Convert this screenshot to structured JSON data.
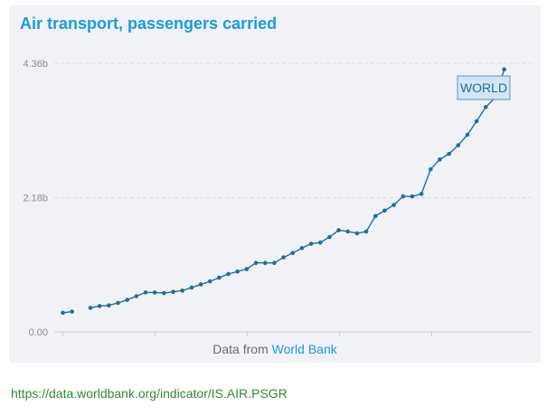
{
  "header": {
    "title": "Air transport, passengers carried"
  },
  "source": {
    "prefix": "Data from",
    "link_text": "World Bank"
  },
  "footer": {
    "url": "https://data.worldbank.org/indicator/IS.AIR.PSGR"
  },
  "colors": {
    "title": "#1b9be0",
    "series": "#1f6fa0",
    "grid": "#d6d9e0",
    "link": "#2e8b2e"
  },
  "chart_data": {
    "type": "line",
    "title": "Air transport, passengers carried",
    "xlabel": "",
    "ylabel": "",
    "y_ticks": [
      "0.00",
      "2.18b",
      "4.36b"
    ],
    "y_tick_values": [
      0,
      2.18,
      4.36
    ],
    "ylim": [
      0,
      4.36
    ],
    "grid": true,
    "series": [
      {
        "name": "WORLD",
        "segments": [
          {
            "x": [
              0,
              1
            ],
            "y": [
              0.31,
              0.33
            ]
          },
          {
            "x": [
              3,
              4,
              5,
              6,
              7,
              8,
              9,
              10,
              11,
              12,
              13,
              14,
              15,
              16,
              17,
              18,
              19,
              20,
              21,
              22,
              23,
              24,
              25,
              26,
              27,
              28,
              29,
              30,
              31,
              32,
              33,
              34,
              35,
              36,
              37,
              38,
              39,
              40,
              41,
              42,
              43,
              44,
              45,
              46,
              47,
              48
            ],
            "y": [
              0.39,
              0.42,
              0.43,
              0.47,
              0.52,
              0.58,
              0.64,
              0.64,
              0.63,
              0.65,
              0.67,
              0.72,
              0.77,
              0.82,
              0.88,
              0.94,
              0.98,
              1.02,
              1.12,
              1.12,
              1.12,
              1.21,
              1.28,
              1.36,
              1.43,
              1.45,
              1.54,
              1.65,
              1.63,
              1.6,
              1.63,
              1.88,
              1.97,
              2.06,
              2.2,
              2.2,
              2.24,
              2.64,
              2.8,
              2.89,
              3.03,
              3.2,
              3.42,
              3.65,
              3.8,
              4.26
            ]
          }
        ],
        "label": "WORLD"
      }
    ],
    "x_tick_count": 5
  }
}
